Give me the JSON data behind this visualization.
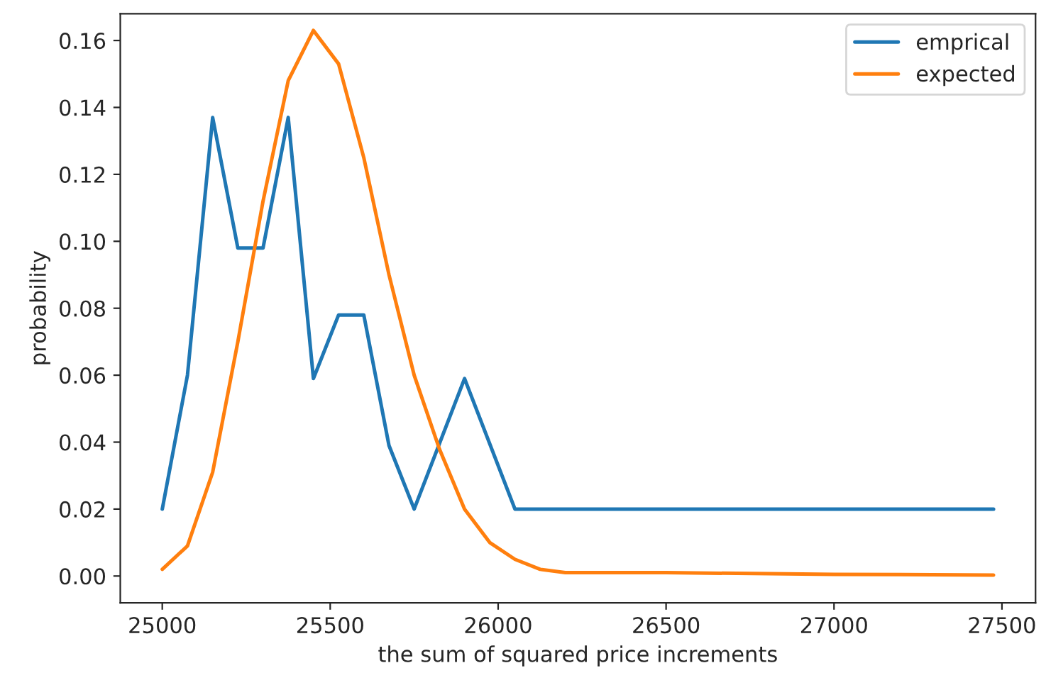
{
  "chart_data": {
    "type": "line",
    "xlabel": "the sum of squared price increments",
    "ylabel": "probability",
    "xlim": [
      24875,
      27600
    ],
    "ylim": [
      -0.008,
      0.168
    ],
    "xticks": [
      25000,
      25500,
      26000,
      26500,
      27000,
      27500
    ],
    "yticks": [
      {
        "value": 0,
        "label": "0.00"
      },
      {
        "value": 0.02,
        "label": "0.02"
      },
      {
        "value": 0.04,
        "label": "0.04"
      },
      {
        "value": 0.06,
        "label": "0.06"
      },
      {
        "value": 0.08,
        "label": "0.08"
      },
      {
        "value": 0.1,
        "label": "0.10"
      },
      {
        "value": 0.12,
        "label": "0.12"
      },
      {
        "value": 0.14,
        "label": "0.14"
      },
      {
        "value": 0.16,
        "label": "0.16"
      }
    ],
    "grid": false,
    "legend": "top right",
    "marker": "none",
    "line_style": "solid",
    "series": [
      {
        "name": "emprical",
        "color": "#1f77b4",
        "x": [
          25000,
          25075,
          25150,
          25225,
          25300,
          25375,
          25450,
          25525,
          25600,
          25675,
          25750,
          25900,
          26050,
          27475
        ],
        "values": [
          0.02,
          0.06,
          0.137,
          0.098,
          0.098,
          0.137,
          0.059,
          0.078,
          0.078,
          0.039,
          0.02,
          0.059,
          0.02,
          0.02
        ]
      },
      {
        "name": "expected",
        "color": "#ff7f0e",
        "x": [
          25000,
          25075,
          25150,
          25225,
          25300,
          25375,
          25450,
          25525,
          25600,
          25675,
          25750,
          25825,
          25900,
          25975,
          26050,
          26125,
          26200,
          26500,
          27000,
          27475
        ],
        "values": [
          0.002,
          0.009,
          0.031,
          0.07,
          0.112,
          0.148,
          0.163,
          0.153,
          0.125,
          0.09,
          0.06,
          0.038,
          0.02,
          0.01,
          0.005,
          0.002,
          0.001,
          0.001,
          0.0005,
          0.0003
        ]
      }
    ]
  }
}
